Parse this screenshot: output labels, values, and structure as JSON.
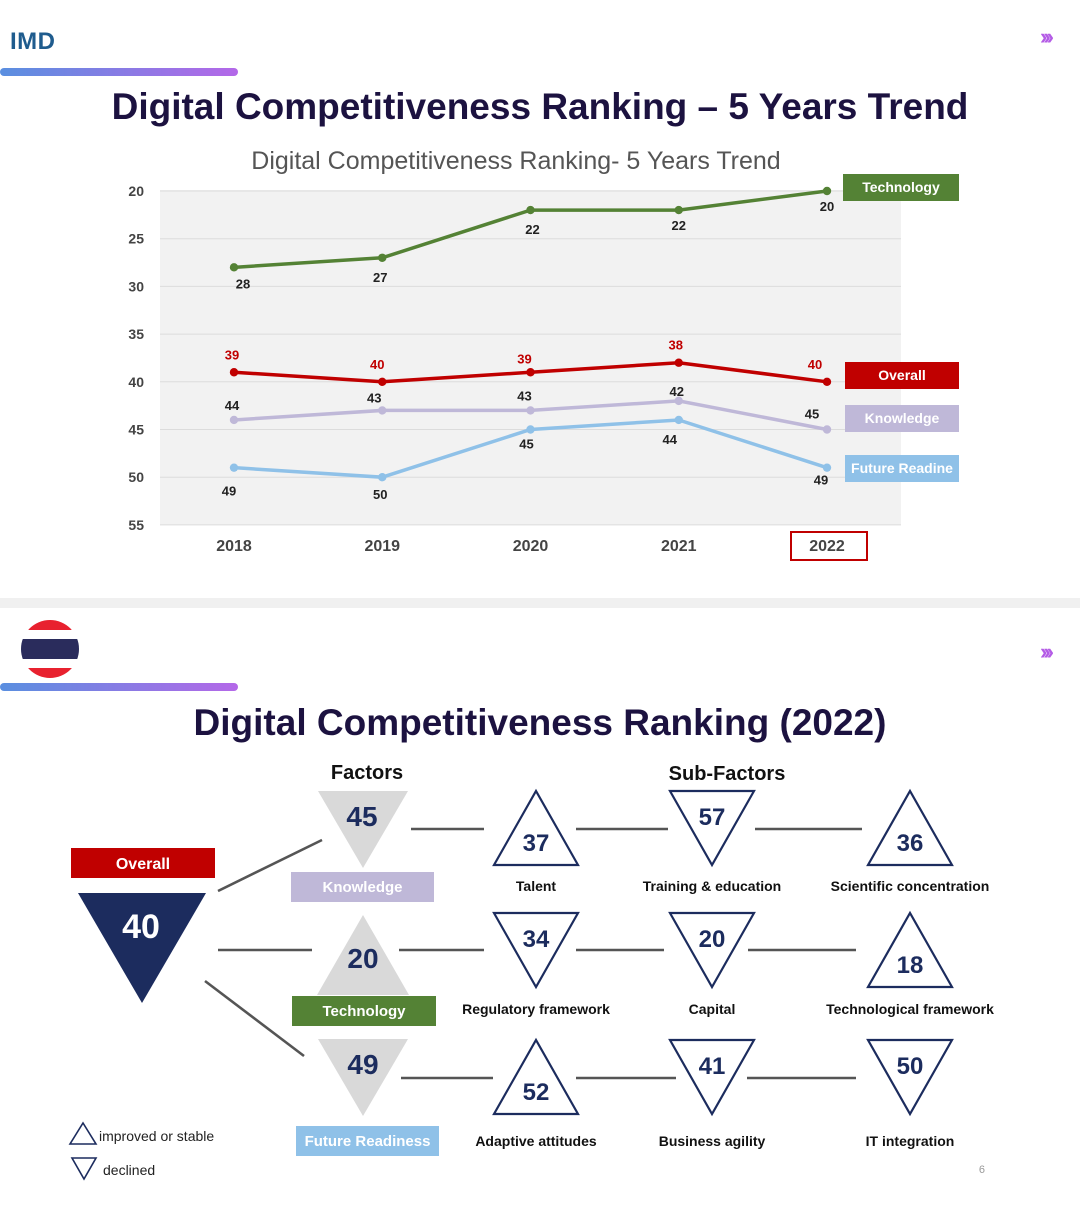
{
  "slide1": {
    "logo": "IMD",
    "chevrons": "›››",
    "title": "Digital Competitiveness Ranking – 5 Years Trend",
    "chart_title": "Digital Competitiveness Ranking- 5 Years Trend",
    "highlighted_year": "2022"
  },
  "chart_data": {
    "type": "line",
    "title": "Digital Competitiveness Ranking- 5 Years Trend",
    "x": [
      "2018",
      "2019",
      "2020",
      "2021",
      "2022"
    ],
    "yticks": [
      "20",
      "25",
      "30",
      "35",
      "40",
      "45",
      "50",
      "55"
    ],
    "ylim": [
      20,
      55
    ],
    "y_inverted": true,
    "grid": true,
    "legend_position": "right, beside line ends",
    "series": [
      {
        "name": "Technology",
        "color": "#548235",
        "values": [
          28,
          27,
          22,
          22,
          20
        ]
      },
      {
        "name": "Overall",
        "color": "#c00000",
        "values": [
          39,
          40,
          39,
          38,
          40
        ]
      },
      {
        "name": "Knowledge",
        "color": "#bfb8d8",
        "values": [
          44,
          43,
          43,
          42,
          45
        ]
      },
      {
        "name": "Future Readine",
        "color": "#8fc1e8",
        "values": [
          49,
          50,
          45,
          44,
          49
        ]
      }
    ]
  },
  "slide2": {
    "chevrons": "›››",
    "title": "Digital Competitiveness Ranking (2022)",
    "factors_header": "Factors",
    "subfactors_header": "Sub-Factors",
    "overall": {
      "label": "Overall",
      "value": "40",
      "color": "#c00000",
      "shape": "down"
    },
    "factors": [
      {
        "label": "Knowledge",
        "value": "45",
        "color": "#bfb8d8",
        "shape": "down"
      },
      {
        "label": "Technology",
        "value": "20",
        "color": "#548235",
        "shape": "up"
      },
      {
        "label": "Future Readiness",
        "value": "49",
        "color": "#8fc1e8",
        "shape": "down"
      }
    ],
    "subfactors": [
      [
        {
          "label": "Talent",
          "value": "37",
          "shape": "up"
        },
        {
          "label": "Training & education",
          "value": "57",
          "shape": "down"
        },
        {
          "label": "Scientific concentration",
          "value": "36",
          "shape": "up"
        }
      ],
      [
        {
          "label": "Regulatory framework",
          "value": "34",
          "shape": "down"
        },
        {
          "label": "Capital",
          "value": "20",
          "shape": "down"
        },
        {
          "label": "Technological framework",
          "value": "18",
          "shape": "up"
        }
      ],
      [
        {
          "label": "Adaptive attitudes",
          "value": "52",
          "shape": "up"
        },
        {
          "label": "Business agility",
          "value": "41",
          "shape": "down"
        },
        {
          "label": "IT integration",
          "value": "50",
          "shape": "down"
        }
      ]
    ],
    "legend": {
      "improved": "improved or stable",
      "declined": "declined"
    },
    "page_number": "6"
  }
}
